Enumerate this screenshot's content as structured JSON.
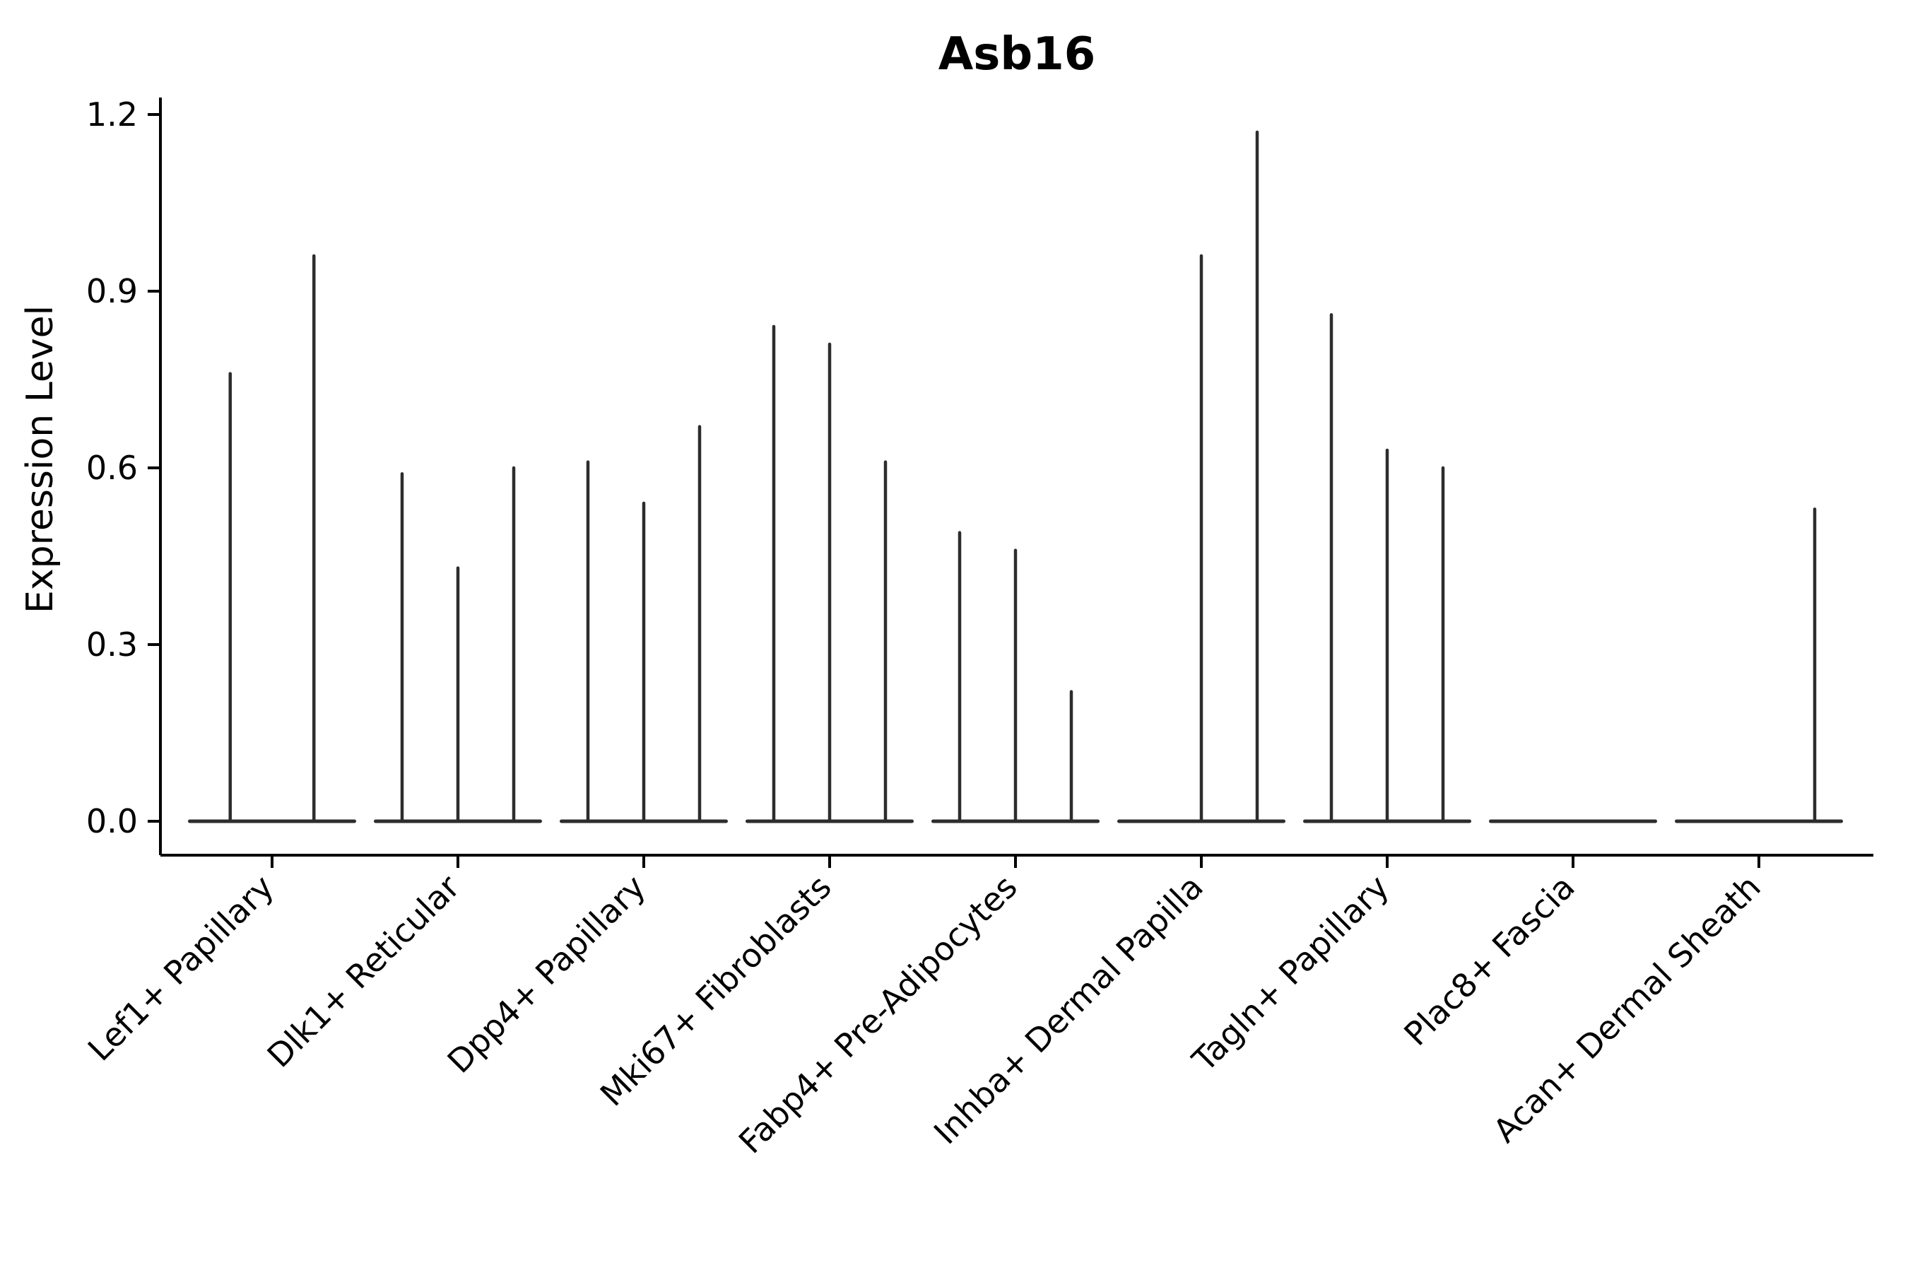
{
  "figure": {
    "background": "#ffffff"
  },
  "chart_data": {
    "type": "violin",
    "title": "Asb16",
    "xlabel": "",
    "ylabel": "Expression Level",
    "ylim": [
      0,
      1.2
    ],
    "ytick_values": [
      0.0,
      0.3,
      0.6,
      0.9,
      1.2
    ],
    "ytick_labels": [
      "0.0",
      "0.3",
      "0.6",
      "0.9",
      "1.2"
    ],
    "grid": false,
    "legend_position": "none",
    "violin_style": "collapsed-at-zero with thin spike reaching each violin's maximum expression",
    "categories": [
      "Lef1+ Papillary",
      "Dlk1+ Reticular",
      "Dpp4+ Papillary",
      "Mki67+ Fibroblasts",
      "Fabp4+ Pre-Adipocytes",
      "Inhba+ Dermal Papilla",
      "Tagln+ Papillary",
      "Plac8+ Fascia",
      "Acan+ Dermal Sheath"
    ],
    "groups": [
      {
        "label": "Lef1+ Papillary",
        "violin_maxima": [
          0.76,
          0.96
        ]
      },
      {
        "label": "Dlk1+ Reticular",
        "violin_maxima": [
          0.59,
          0.43,
          0.6
        ]
      },
      {
        "label": "Dpp4+ Papillary",
        "violin_maxima": [
          0.61,
          0.54,
          0.67
        ]
      },
      {
        "label": "Mki67+ Fibroblasts",
        "violin_maxima": [
          0.84,
          0.81,
          0.61
        ]
      },
      {
        "label": "Fabp4+ Pre-Adipocytes",
        "violin_maxima": [
          0.49,
          0.46,
          0.22
        ]
      },
      {
        "label": "Inhba+ Dermal Papilla",
        "violin_maxima": [
          0.0,
          0.96,
          1.17
        ]
      },
      {
        "label": "Tagln+ Papillary",
        "violin_maxima": [
          0.86,
          0.63,
          0.6
        ]
      },
      {
        "label": "Plac8+ Fascia",
        "violin_maxima": [
          0.0,
          0.0,
          0.0
        ]
      },
      {
        "label": "Acan+ Dermal Sheath",
        "violin_maxima": [
          0.0,
          0.0,
          0.53
        ]
      }
    ],
    "colors": {
      "violin": "#2d2d2d",
      "axis": "#000000",
      "text": "#000000",
      "background": "#ffffff"
    }
  }
}
